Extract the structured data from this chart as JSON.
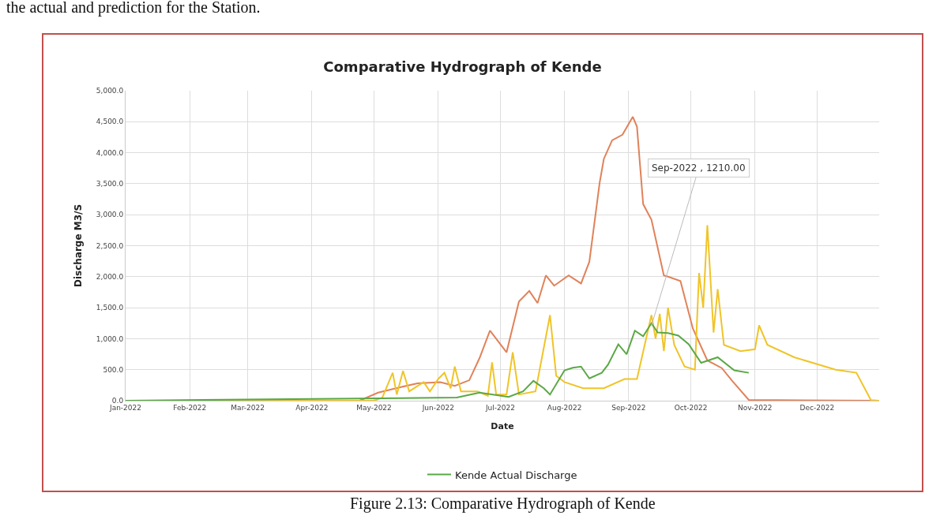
{
  "chart_data": {
    "type": "line",
    "title": "Comparative Hydrograph of Kende",
    "xlabel": "Date",
    "ylabel": "Discharge M3/S",
    "xlim": [
      "2022-01-01",
      "2022-12-31"
    ],
    "xticks": [
      {
        "value": "2022-01-01",
        "label": "Jan-2022"
      },
      {
        "value": "2022-02-01",
        "label": "Feb-2022"
      },
      {
        "value": "2022-03-01",
        "label": "Mar-2022"
      },
      {
        "value": "2022-04-01",
        "label": "Apr-2022"
      },
      {
        "value": "2022-05-01",
        "label": "May-2022"
      },
      {
        "value": "2022-06-01",
        "label": "Jun-2022"
      },
      {
        "value": "2022-07-01",
        "label": "Jul-2022"
      },
      {
        "value": "2022-08-01",
        "label": "Aug-2022"
      },
      {
        "value": "2022-09-01",
        "label": "Sep-2022"
      },
      {
        "value": "2022-10-01",
        "label": "Oct-2022"
      },
      {
        "value": "2022-11-01",
        "label": "Nov-2022"
      },
      {
        "value": "2022-12-01",
        "label": "Dec-2022"
      }
    ],
    "ylim": [
      0,
      5000
    ],
    "yticks": [
      {
        "value": 0,
        "label": "0.0"
      },
      {
        "value": 500,
        "label": "500.0"
      },
      {
        "value": 1000,
        "label": "1,000.0"
      },
      {
        "value": 1500,
        "label": "1,500.0"
      },
      {
        "value": 2000,
        "label": "2,000.0"
      },
      {
        "value": 2500,
        "label": "2,500.0"
      },
      {
        "value": 3000,
        "label": "3,000.0"
      },
      {
        "value": 3500,
        "label": "3,500.0"
      },
      {
        "value": 4000,
        "label": "4,000.0"
      },
      {
        "value": 4500,
        "label": "4,500.0"
      },
      {
        "value": 5000,
        "label": "5,000.0"
      }
    ],
    "grid": true,
    "legend": "bottom",
    "marker": "none",
    "line_style": "solid",
    "series": [
      {
        "color": "#e0825a",
        "x": [
          "2022-01-01",
          "2022-04-24",
          "2022-05-03",
          "2022-05-14",
          "2022-05-22",
          "2022-06-02",
          "2022-06-09",
          "2022-06-16",
          "2022-06-21",
          "2022-06-26",
          "2022-07-04",
          "2022-07-10",
          "2022-07-15",
          "2022-07-19",
          "2022-07-23",
          "2022-07-27",
          "2022-08-03",
          "2022-08-09",
          "2022-08-13",
          "2022-08-18",
          "2022-08-20",
          "2022-08-24",
          "2022-08-29",
          "2022-09-03",
          "2022-09-05",
          "2022-09-08",
          "2022-09-12",
          "2022-09-18",
          "2022-09-20",
          "2022-09-26",
          "2022-10-02",
          "2022-10-09",
          "2022-10-16",
          "2022-10-21",
          "2022-10-29",
          "2022-12-31"
        ],
        "values": [
          0,
          0,
          130,
          220,
          280,
          300,
          240,
          330,
          690,
          1130,
          780,
          1600,
          1770,
          1575,
          2020,
          1855,
          2020,
          1890,
          2240,
          3520,
          3900,
          4200,
          4290,
          4580,
          4420,
          3170,
          2920,
          2020,
          2000,
          1930,
          1165,
          650,
          525,
          320,
          13,
          0
        ]
      },
      {
        "color": "#f0c428",
        "x": [
          "2022-01-01",
          "2022-05-01",
          "2022-05-05",
          "2022-05-10",
          "2022-05-12",
          "2022-05-15",
          "2022-05-18",
          "2022-05-25",
          "2022-05-28",
          "2022-06-01",
          "2022-06-04",
          "2022-06-07",
          "2022-06-09",
          "2022-06-12",
          "2022-06-20",
          "2022-06-25",
          "2022-06-27",
          "2022-06-29",
          "2022-07-04",
          "2022-07-07",
          "2022-07-10",
          "2022-07-18",
          "2022-07-25",
          "2022-07-28",
          "2022-08-01",
          "2022-08-10",
          "2022-08-20",
          "2022-08-30",
          "2022-09-05",
          "2022-09-12",
          "2022-09-14",
          "2022-09-16",
          "2022-09-18",
          "2022-09-20",
          "2022-09-23",
          "2022-09-28",
          "2022-10-03",
          "2022-10-05",
          "2022-10-07",
          "2022-10-09",
          "2022-10-12",
          "2022-10-14",
          "2022-10-17",
          "2022-10-25",
          "2022-11-01",
          "2022-11-03",
          "2022-11-07",
          "2022-11-20",
          "2022-12-10",
          "2022-12-20",
          "2022-12-27",
          "2022-12-31"
        ],
        "values": [
          0,
          0,
          50,
          450,
          100,
          480,
          150,
          300,
          150,
          350,
          450,
          200,
          550,
          150,
          150,
          80,
          620,
          100,
          100,
          780,
          100,
          150,
          1380,
          400,
          300,
          200,
          200,
          350,
          350,
          1380,
          1000,
          1400,
          800,
          1500,
          900,
          550,
          500,
          2060,
          1500,
          2830,
          1100,
          1800,
          900,
          800,
          830,
          1215,
          900,
          700,
          500,
          450,
          10,
          0
        ]
      },
      {
        "name": "Kende Actual Discharge",
        "color": "#5aa845",
        "x": [
          "2022-01-01",
          "2022-06-10",
          "2022-06-21",
          "2022-07-05",
          "2022-07-12",
          "2022-07-17",
          "2022-07-22",
          "2022-07-25",
          "2022-08-01",
          "2022-08-05",
          "2022-08-09",
          "2022-08-13",
          "2022-08-19",
          "2022-08-22",
          "2022-08-27",
          "2022-08-31",
          "2022-09-04",
          "2022-09-08",
          "2022-09-12",
          "2022-09-15",
          "2022-09-20",
          "2022-09-25",
          "2022-09-30",
          "2022-10-06",
          "2022-10-14",
          "2022-10-22",
          "2022-10-29"
        ],
        "values": [
          0,
          50,
          130,
          60,
          150,
          320,
          200,
          100,
          490,
          530,
          550,
          360,
          450,
          580,
          910,
          750,
          1130,
          1040,
          1250,
          1100,
          1090,
          1050,
          910,
          610,
          700,
          490,
          450
        ]
      }
    ],
    "annotations": [
      {
        "text": "Sep-2022 , 1210.00",
        "x": "2022-09-12",
        "y": 1210
      },
      "the actual and prediction for the Station.",
      "Figure 2.13: Comparative Hydrograph of Kende"
    ]
  }
}
